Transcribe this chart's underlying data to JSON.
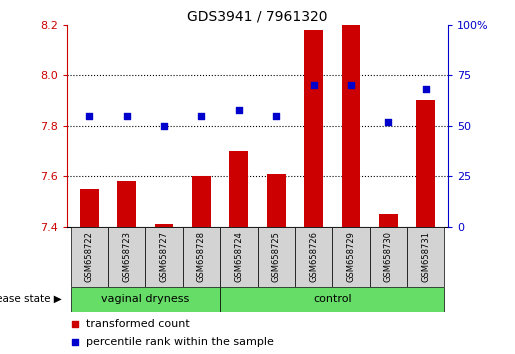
{
  "title": "GDS3941 / 7961320",
  "samples": [
    "GSM658722",
    "GSM658723",
    "GSM658727",
    "GSM658728",
    "GSM658724",
    "GSM658725",
    "GSM658726",
    "GSM658729",
    "GSM658730",
    "GSM658731"
  ],
  "red_values": [
    7.55,
    7.58,
    7.41,
    7.6,
    7.7,
    7.61,
    8.18,
    8.2,
    7.45,
    7.9
  ],
  "blue_values": [
    55,
    55,
    50,
    55,
    58,
    55,
    70,
    70,
    52,
    68
  ],
  "ylim_left": [
    7.4,
    8.2
  ],
  "ylim_right": [
    0,
    100
  ],
  "yticks_left": [
    7.4,
    7.6,
    7.8,
    8.0,
    8.2
  ],
  "yticks_right": [
    0,
    25,
    50,
    75,
    100
  ],
  "ytick_labels_right": [
    "0",
    "25",
    "50",
    "75",
    "100%"
  ],
  "groups": [
    {
      "label": "vaginal dryness",
      "indices": [
        0,
        1,
        2,
        3
      ]
    },
    {
      "label": "control",
      "indices": [
        4,
        5,
        6,
        7,
        8,
        9
      ]
    }
  ],
  "group_label": "disease state",
  "legend": [
    {
      "label": "transformed count",
      "color": "#CC0000"
    },
    {
      "label": "percentile rank within the sample",
      "color": "#0000CC"
    }
  ],
  "bar_color": "#CC0000",
  "dot_color": "#0000CC",
  "bar_bottom": 7.4,
  "dot_size": 25,
  "left_tick_color": "#CC0000",
  "right_tick_color": "#0000CC",
  "group_color": "#66DD66",
  "sample_box_color": "#D3D3D3"
}
